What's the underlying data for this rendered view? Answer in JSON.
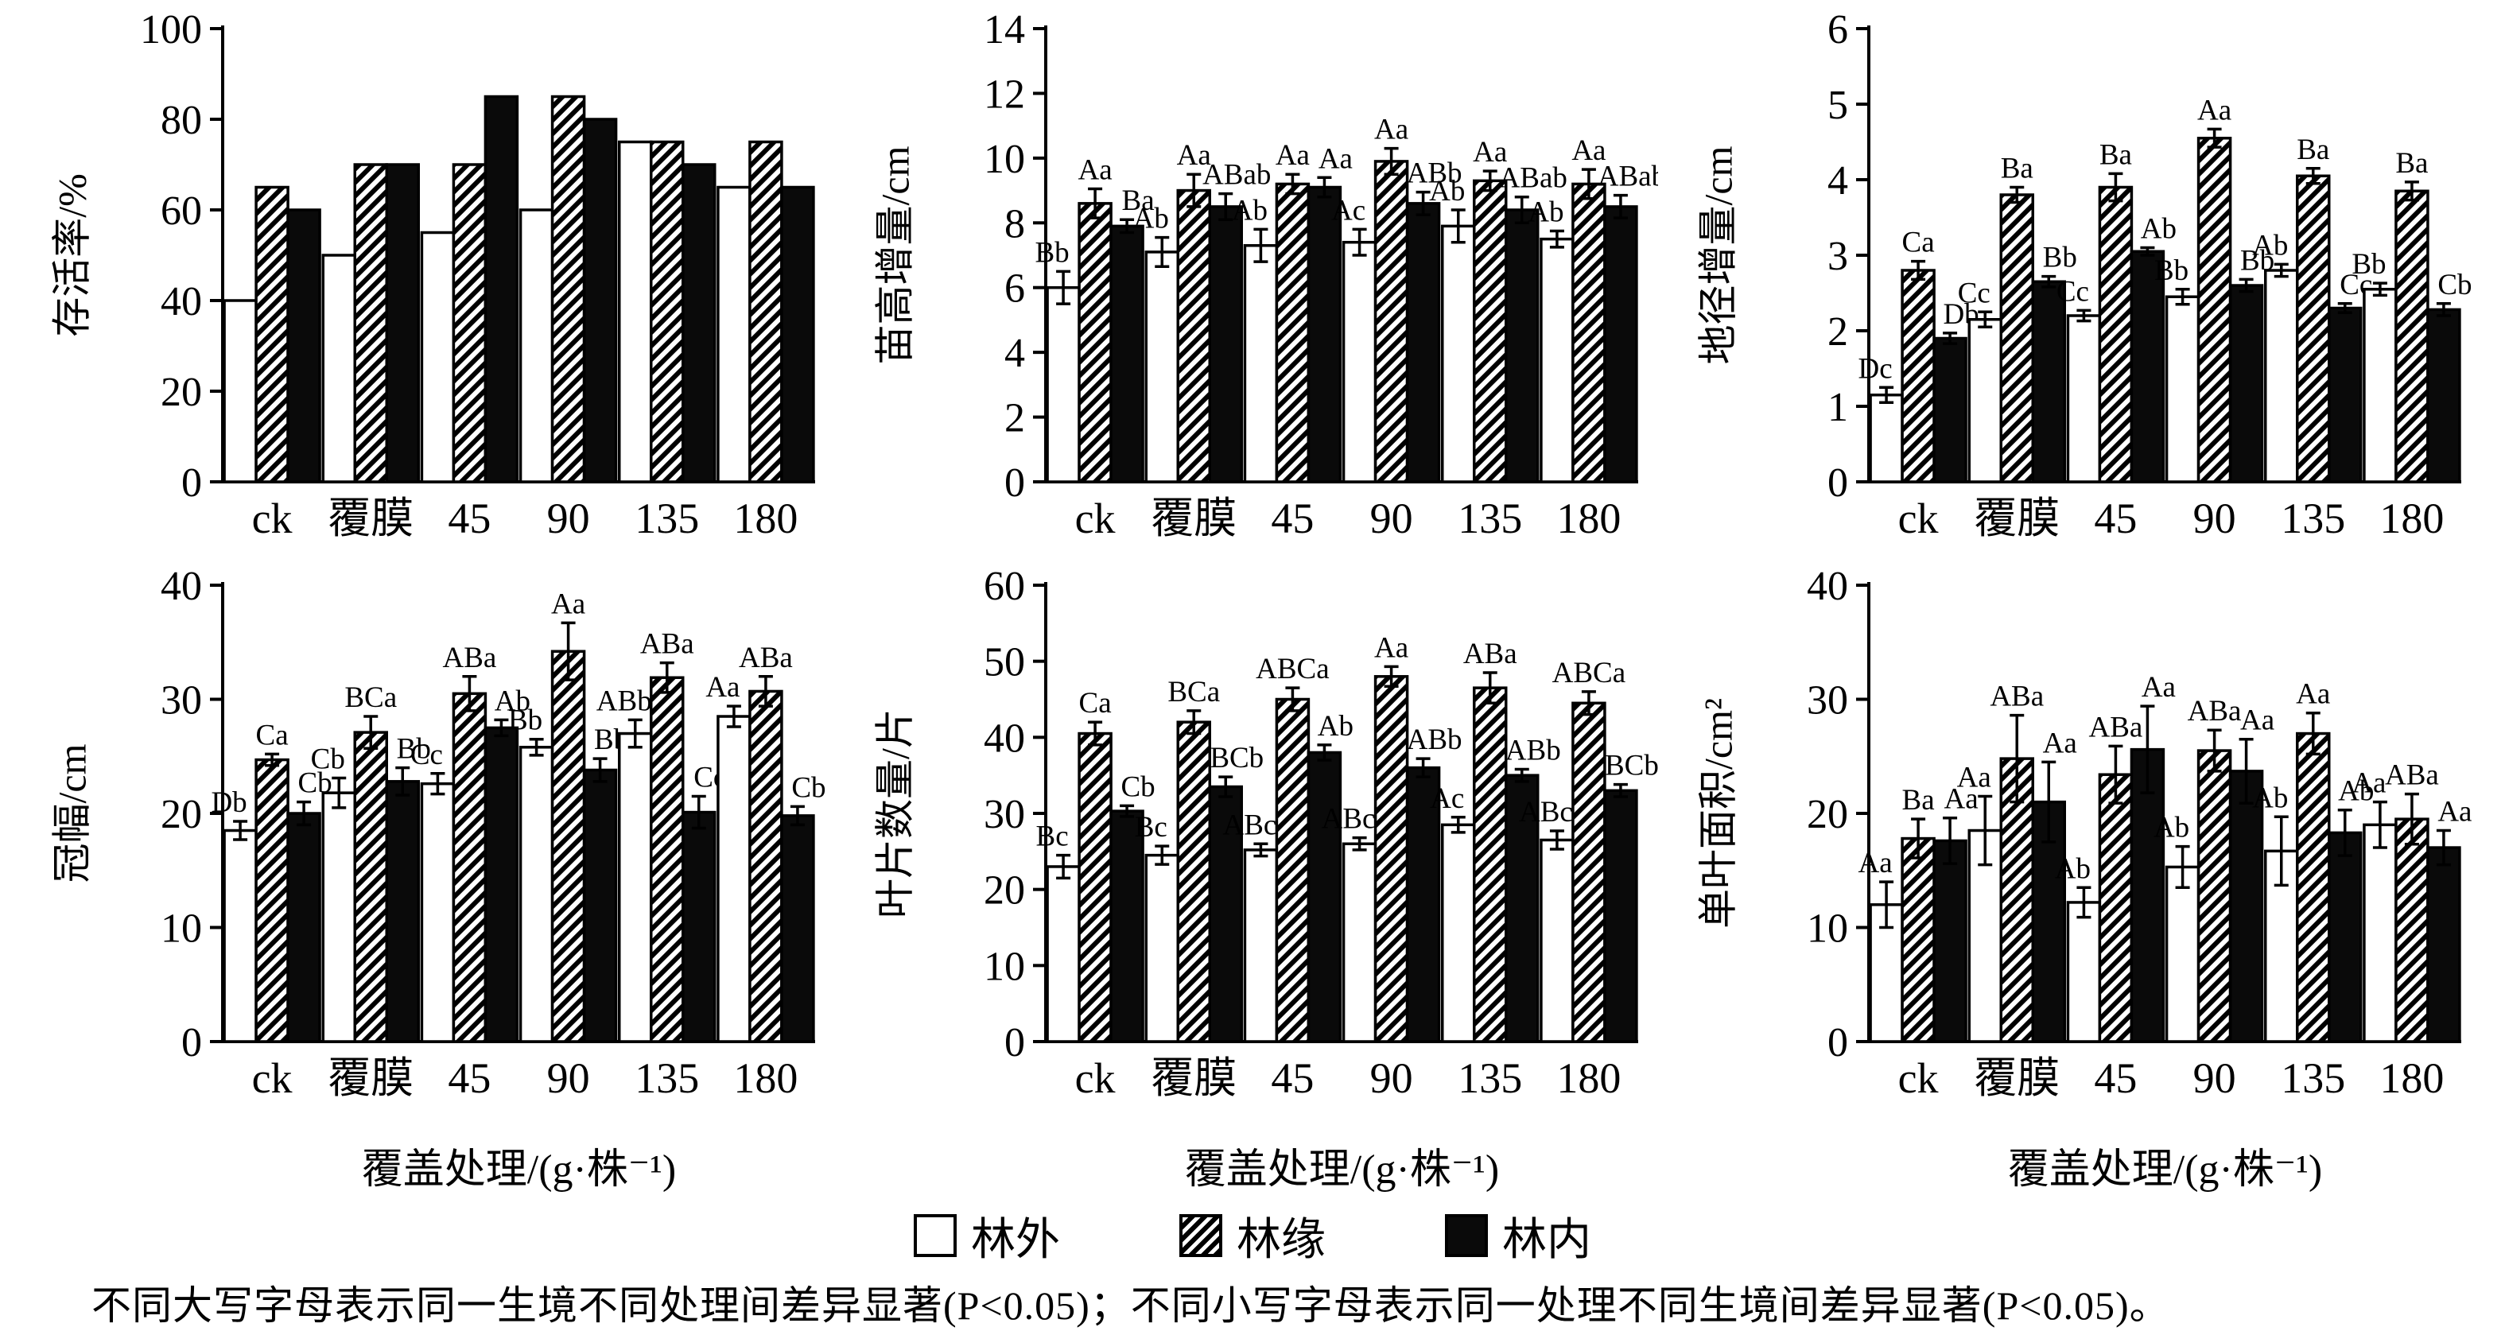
{
  "figure_title": "",
  "categories": [
    "ck",
    "覆膜",
    "45",
    "90",
    "135",
    "180"
  ],
  "x_axis_label": "覆盖处理/(g·株⁻¹)",
  "colors": {
    "bar_white": "#ffffff",
    "bar_black": "#0a0a0a",
    "axis": "#000000"
  },
  "legend": {
    "items": [
      {
        "label": "林外",
        "style": "white"
      },
      {
        "label": "林缘",
        "style": "hatch"
      },
      {
        "label": "林内",
        "style": "black"
      }
    ]
  },
  "footnote": "不同大写字母表示同一生境不同处理间差异显著(P<0.05)；不同小写字母表示同一处理不同生境间差异显著(P<0.05)。",
  "chart_data": [
    {
      "id": "survival-rate",
      "type": "bar",
      "title": "",
      "ylabel": "存活率/%",
      "ymax": 100,
      "ystep": 20,
      "xlabel": "",
      "categories": [
        "ck",
        "覆膜",
        "45",
        "90",
        "135",
        "180"
      ],
      "series": [
        {
          "name": "林外",
          "style": "white",
          "values": [
            40,
            50,
            55,
            60,
            75,
            65
          ]
        },
        {
          "name": "林缘",
          "style": "hatch",
          "values": [
            65,
            70,
            70,
            85,
            75,
            75
          ]
        },
        {
          "name": "林内",
          "style": "black",
          "values": [
            60,
            70,
            85,
            80,
            70,
            65
          ]
        }
      ]
    },
    {
      "id": "height-increment",
      "type": "bar",
      "title": "",
      "ylabel": "苗高增量/cm",
      "ymax": 14,
      "ystep": 2,
      "xlabel": "",
      "categories": [
        "ck",
        "覆膜",
        "45",
        "90",
        "135",
        "180"
      ],
      "series": [
        {
          "name": "林外",
          "style": "white",
          "values": [
            6.0,
            7.1,
            7.3,
            7.4,
            7.9,
            7.5
          ],
          "errors": [
            0.5,
            0.45,
            0.5,
            0.4,
            0.5,
            0.25
          ],
          "letters": [
            "Bb",
            "Ab",
            "Ab",
            "Ac",
            "Ab",
            "Ab"
          ]
        },
        {
          "name": "林缘",
          "style": "hatch",
          "values": [
            8.6,
            9.0,
            9.2,
            9.9,
            9.3,
            9.2
          ],
          "errors": [
            0.45,
            0.5,
            0.3,
            0.4,
            0.3,
            0.45
          ],
          "letters": [
            "Aa",
            "Aa",
            "Aa",
            "Aa",
            "Aa",
            "Aa"
          ]
        },
        {
          "name": "林内",
          "style": "black",
          "values": [
            7.9,
            8.5,
            9.1,
            8.6,
            8.4,
            8.5
          ],
          "errors": [
            0.2,
            0.4,
            0.3,
            0.35,
            0.4,
            0.35
          ],
          "letters": [
            "Ba",
            "ABab",
            "Aa",
            "ABb",
            "ABab",
            "ABab"
          ]
        }
      ]
    },
    {
      "id": "diameter-increment",
      "type": "bar",
      "title": "",
      "ylabel": "地径增量/cm",
      "ymax": 6,
      "ystep": 1,
      "xlabel": "",
      "categories": [
        "ck",
        "覆膜",
        "45",
        "90",
        "135",
        "180"
      ],
      "series": [
        {
          "name": "林外",
          "style": "white",
          "values": [
            1.15,
            2.15,
            2.2,
            2.45,
            2.8,
            2.55
          ],
          "errors": [
            0.1,
            0.1,
            0.07,
            0.1,
            0.08,
            0.08
          ],
          "letters": [
            "Dc",
            "Cc",
            "Cc",
            "Bb",
            "Ab",
            "Bb"
          ]
        },
        {
          "name": "林缘",
          "style": "hatch",
          "values": [
            2.8,
            3.8,
            3.9,
            4.55,
            4.05,
            3.85
          ],
          "errors": [
            0.12,
            0.1,
            0.18,
            0.12,
            0.1,
            0.12
          ],
          "letters": [
            "Ca",
            "Ba",
            "Ba",
            "Aa",
            "Ba",
            "Ba"
          ]
        },
        {
          "name": "林内",
          "style": "black",
          "values": [
            1.9,
            2.65,
            3.05,
            2.6,
            2.3,
            2.28
          ],
          "errors": [
            0.07,
            0.07,
            0.05,
            0.08,
            0.06,
            0.08
          ],
          "letters": [
            "Db",
            "Bb",
            "Ab",
            "Bb",
            "Cc",
            "Cb"
          ]
        }
      ]
    },
    {
      "id": "crown-width",
      "type": "bar",
      "title": "",
      "ylabel": "冠幅/cm",
      "ymax": 40,
      "ystep": 10,
      "xlabel": "覆盖处理/(g·株⁻¹)",
      "categories": [
        "ck",
        "覆膜",
        "45",
        "90",
        "135",
        "180"
      ],
      "series": [
        {
          "name": "林外",
          "style": "white",
          "values": [
            18.5,
            21.8,
            22.6,
            25.8,
            27.0,
            28.5
          ],
          "errors": [
            0.8,
            1.3,
            0.9,
            0.7,
            1.2,
            0.9
          ],
          "letters": [
            "Db",
            "Cb",
            "Cc",
            "Bb",
            "ABb",
            "Aa"
          ]
        },
        {
          "name": "林缘",
          "style": "hatch",
          "values": [
            24.7,
            27.1,
            30.5,
            34.2,
            31.9,
            30.7
          ],
          "errors": [
            0.5,
            1.4,
            1.5,
            2.5,
            1.3,
            1.3
          ],
          "letters": [
            "Ca",
            "BCa",
            "ABa",
            "Aa",
            "ABa",
            "ABa"
          ]
        },
        {
          "name": "林内",
          "style": "black",
          "values": [
            20.0,
            22.8,
            27.5,
            23.8,
            20.1,
            19.8
          ],
          "errors": [
            1.0,
            1.2,
            0.7,
            1.0,
            1.4,
            0.8
          ],
          "letters": [
            "Cb",
            "Bb",
            "Ab",
            "Bb",
            "Cc",
            "Cb"
          ]
        }
      ]
    },
    {
      "id": "leaf-number",
      "type": "bar",
      "title": "",
      "ylabel": "叶片数量/片",
      "ymax": 60,
      "ystep": 10,
      "xlabel": "覆盖处理/(g·株⁻¹)",
      "categories": [
        "ck",
        "覆膜",
        "45",
        "90",
        "135",
        "180"
      ],
      "series": [
        {
          "name": "林外",
          "style": "white",
          "values": [
            23,
            24.5,
            25.2,
            26,
            28.5,
            26.5
          ],
          "errors": [
            1.5,
            1.2,
            0.8,
            0.8,
            1.0,
            1.2
          ],
          "letters": [
            "Bc",
            "Bc",
            "ABc",
            "ABc",
            "Ac",
            "ABc"
          ]
        },
        {
          "name": "林缘",
          "style": "hatch",
          "values": [
            40.5,
            42,
            45,
            48,
            46.5,
            44.5
          ],
          "errors": [
            1.5,
            1.5,
            1.5,
            1.3,
            2.0,
            1.5
          ],
          "letters": [
            "Ca",
            "BCa",
            "ABCa",
            "Aa",
            "ABa",
            "ABCa"
          ]
        },
        {
          "name": "林内",
          "style": "black",
          "values": [
            30.3,
            33.5,
            38,
            36,
            35,
            33
          ],
          "errors": [
            0.7,
            1.3,
            1.0,
            1.2,
            0.8,
            0.8
          ],
          "letters": [
            "Cb",
            "BCb",
            "Ab",
            "ABb",
            "ABb",
            "BCb"
          ]
        }
      ]
    },
    {
      "id": "single-leaf-area",
      "type": "bar",
      "title": "",
      "ylabel": "单叶面积/cm²",
      "ymax": 40,
      "ystep": 10,
      "xlabel": "覆盖处理/(g·株⁻¹)",
      "categories": [
        "ck",
        "覆膜",
        "45",
        "90",
        "135",
        "180"
      ],
      "series": [
        {
          "name": "林外",
          "style": "white",
          "values": [
            12,
            18.5,
            12.2,
            15.3,
            16.7,
            19.0
          ],
          "errors": [
            2.0,
            3.0,
            1.3,
            1.8,
            3.0,
            2.0
          ],
          "letters": [
            "Aa",
            "Aa",
            "Ab",
            "Ab",
            "Ab",
            "Aa"
          ]
        },
        {
          "name": "林缘",
          "style": "hatch",
          "values": [
            17.8,
            24.8,
            23.4,
            25.5,
            27.0,
            19.5
          ],
          "errors": [
            1.7,
            3.8,
            2.5,
            1.8,
            1.8,
            2.2
          ],
          "letters": [
            "Ba",
            "ABa",
            "ABa",
            "ABa",
            "Aa",
            "ABa"
          ]
        },
        {
          "name": "林内",
          "style": "black",
          "values": [
            17.6,
            21.0,
            25.6,
            23.7,
            18.3,
            17.0
          ],
          "errors": [
            2.0,
            3.5,
            3.8,
            2.8,
            2.0,
            1.5
          ],
          "letters": [
            "Aa",
            "Aa",
            "Aa",
            "Aa",
            "Ab",
            "Aa"
          ]
        }
      ]
    }
  ]
}
